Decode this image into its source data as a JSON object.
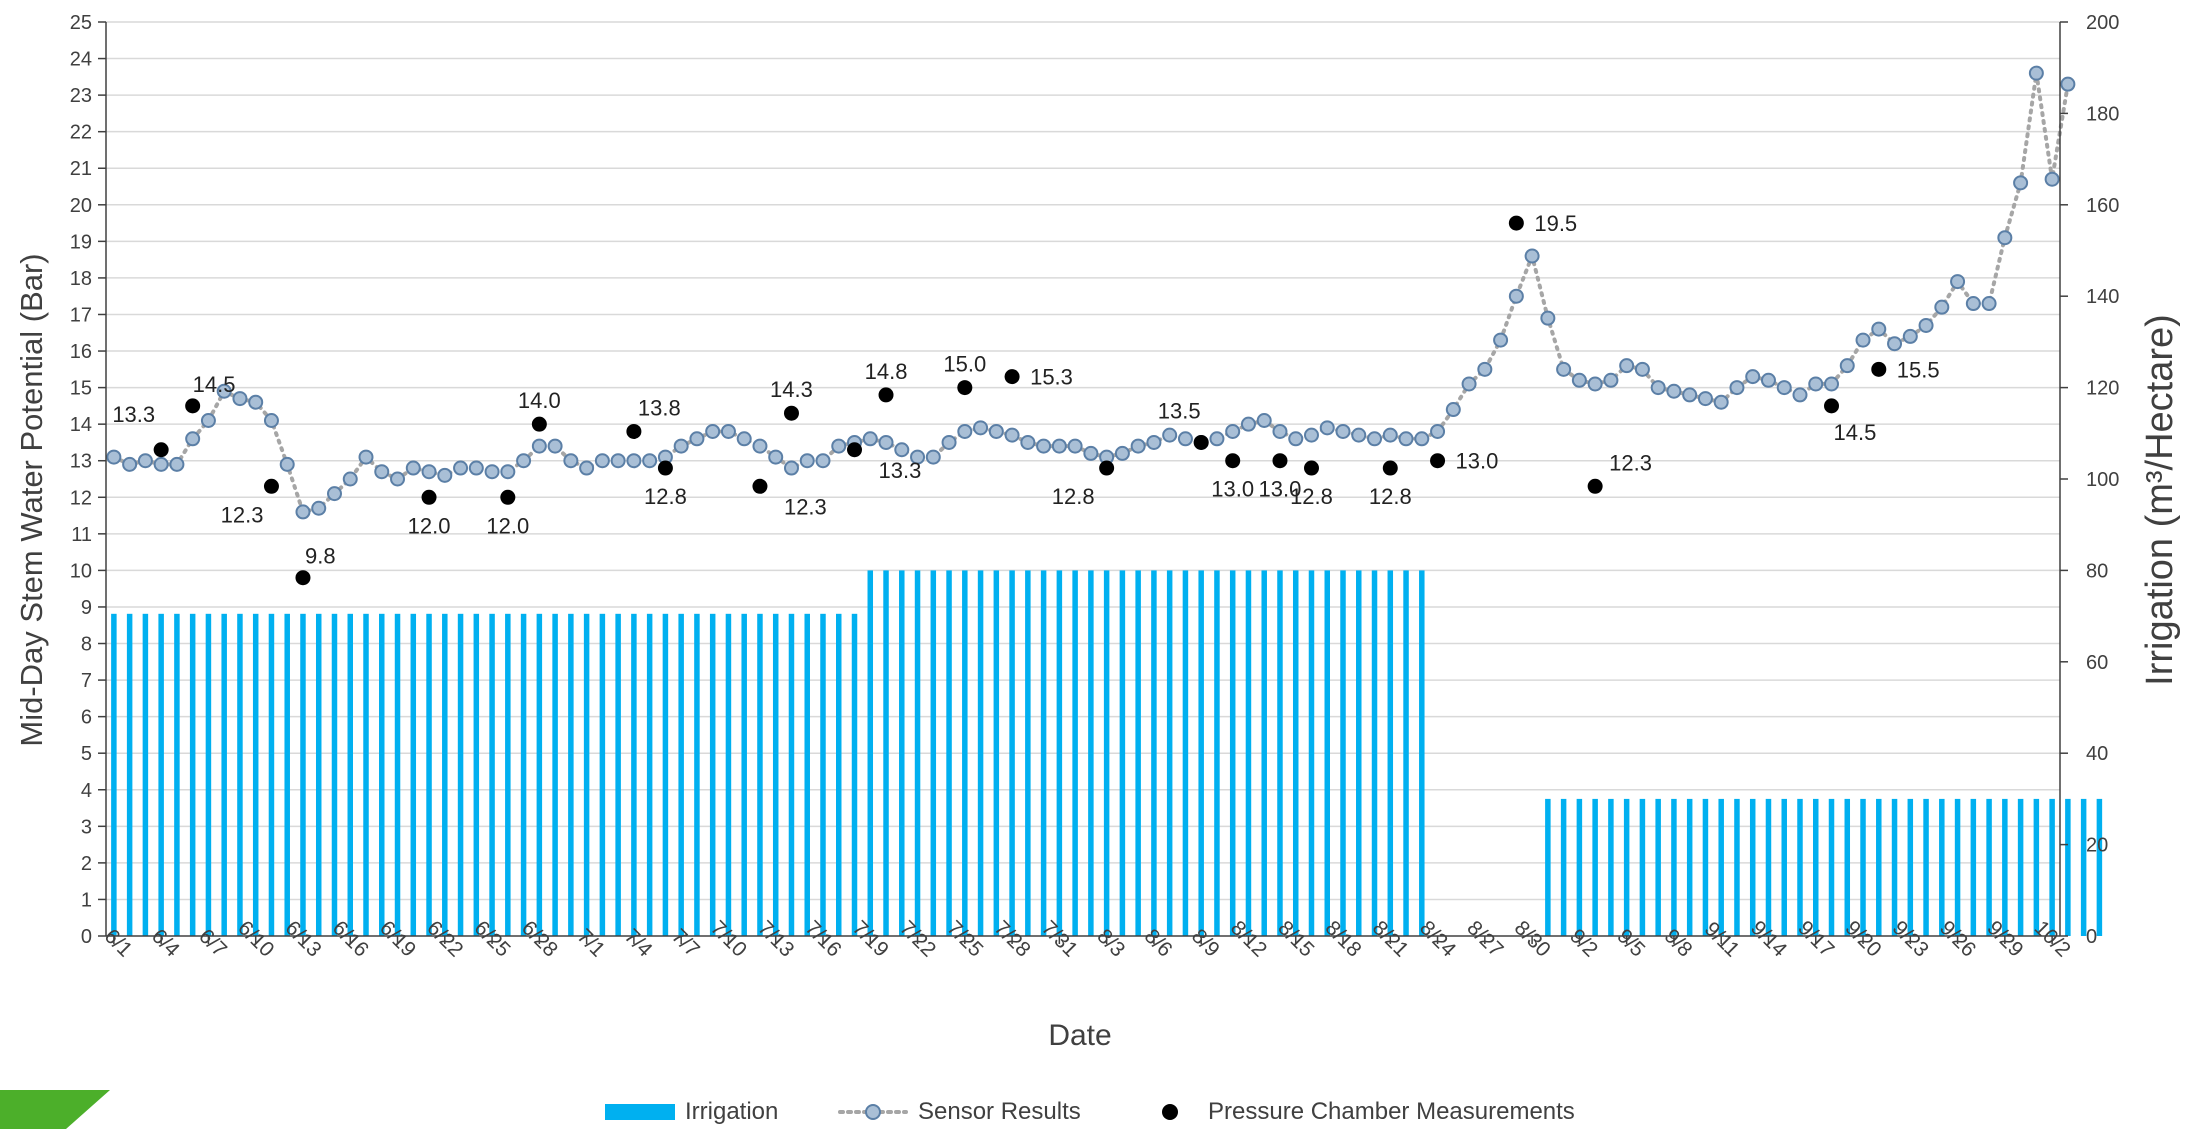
{
  "colors": {
    "irrigation": "#00B0F0",
    "sensor_fill": "#A9BFD6",
    "sensor_stroke": "#5B7FA6",
    "sensor_line": "#A6A6A6",
    "pressure": "#000000",
    "grid": "#D9D9D9",
    "axis_text": "#404040",
    "corner_accent": "#4CAF2A"
  },
  "legend": {
    "irrigation": "Irrigation",
    "sensor": "Sensor Results",
    "pressure": "Pressure Chamber Measurements"
  },
  "chart_data": {
    "type": "bar+line+scatter",
    "xlabel": "Date",
    "ylabel_left": "Mid-Day Stem Water Potential (Bar)",
    "ylabel_right": "Irrigation (m³/Hectare)",
    "ylim_left": [
      0,
      25
    ],
    "ylim_right": [
      0,
      200
    ],
    "left_ticks": [
      0,
      1,
      2,
      3,
      4,
      5,
      6,
      7,
      8,
      9,
      10,
      11,
      12,
      13,
      14,
      15,
      16,
      17,
      18,
      19,
      20,
      21,
      22,
      23,
      24,
      25
    ],
    "right_ticks": [
      0,
      20,
      40,
      60,
      80,
      100,
      120,
      140,
      160,
      180,
      200
    ],
    "grid": true,
    "legend_position": "bottom",
    "x_ticks": [
      "6/1",
      "6/4",
      "6/7",
      "6/10",
      "6/13",
      "6/16",
      "6/19",
      "6/22",
      "6/25",
      "6/28",
      "7/1",
      "7/4",
      "7/7",
      "7/10",
      "7/13",
      "7/16",
      "7/19",
      "7/22",
      "7/25",
      "7/28",
      "7/31",
      "8/3",
      "8/6",
      "8/9",
      "8/12",
      "8/15",
      "8/18",
      "8/21",
      "8/24",
      "8/27",
      "8/30",
      "9/2",
      "9/5",
      "9/8",
      "9/11",
      "9/14",
      "9/17",
      "9/20",
      "9/23",
      "9/26",
      "9/29",
      "10/2"
    ],
    "irrigation": {
      "name": "Irrigation",
      "segments": [
        {
          "start_day": 0,
          "end_day": 47,
          "value": 70.5
        },
        {
          "start_day": 48,
          "end_day": 83,
          "value": 80
        },
        {
          "start_day": 91,
          "end_day": 126,
          "value": 30
        }
      ]
    },
    "sensor": {
      "name": "Sensor Results",
      "values": [
        13.1,
        12.9,
        13.0,
        12.9,
        12.9,
        13.6,
        14.1,
        14.9,
        14.7,
        14.6,
        14.1,
        12.9,
        11.6,
        11.7,
        12.1,
        12.5,
        13.1,
        12.7,
        12.5,
        12.8,
        12.7,
        12.6,
        12.8,
        12.8,
        12.7,
        12.7,
        13.0,
        13.4,
        13.4,
        13.0,
        12.8,
        13.0,
        13.0,
        13.0,
        13.0,
        13.1,
        13.4,
        13.6,
        13.8,
        13.8,
        13.6,
        13.4,
        13.1,
        12.8,
        13.0,
        13.0,
        13.4,
        13.5,
        13.6,
        13.5,
        13.3,
        13.1,
        13.1,
        13.5,
        13.8,
        13.9,
        13.8,
        13.7,
        13.5,
        13.4,
        13.4,
        13.4,
        13.2,
        13.1,
        13.2,
        13.4,
        13.5,
        13.7,
        13.6,
        13.5,
        13.6,
        13.8,
        14.0,
        14.1,
        13.8,
        13.6,
        13.7,
        13.9,
        13.8,
        13.7,
        13.6,
        13.7,
        13.6,
        13.6,
        13.8,
        14.4,
        15.1,
        15.5,
        16.3,
        17.5,
        18.6,
        16.9,
        15.5,
        15.2,
        15.1,
        15.2,
        15.6,
        15.5,
        15.0,
        14.9,
        14.8,
        14.7,
        14.6,
        15.0,
        15.3,
        15.2,
        15.0,
        14.8,
        15.1,
        15.1,
        15.6,
        16.3,
        16.6,
        16.2,
        16.4,
        16.7,
        17.2,
        17.9,
        17.3,
        17.3,
        19.1,
        20.6,
        23.6,
        20.7,
        23.3
      ]
    },
    "pressure": {
      "name": "Pressure Chamber Measurements",
      "points": [
        {
          "day": 3,
          "value": 13.3,
          "label": "13.3"
        },
        {
          "day": 5,
          "value": 14.5,
          "label": "14.5"
        },
        {
          "day": 10,
          "value": 12.3,
          "label": "12.3"
        },
        {
          "day": 12,
          "value": 9.8,
          "label": "9.8"
        },
        {
          "day": 20,
          "value": 12.0,
          "label": "12.0"
        },
        {
          "day": 25,
          "value": 12.0,
          "label": "12.0"
        },
        {
          "day": 27,
          "value": 14.0,
          "label": "14.0"
        },
        {
          "day": 33,
          "value": 13.8,
          "label": "13.8"
        },
        {
          "day": 35,
          "value": 12.8,
          "label": "12.8"
        },
        {
          "day": 41,
          "value": 12.3,
          "label": "12.3"
        },
        {
          "day": 43,
          "value": 14.3,
          "label": "14.3"
        },
        {
          "day": 47,
          "value": 13.3,
          "label": "13.3"
        },
        {
          "day": 49,
          "value": 14.8,
          "label": "14.8"
        },
        {
          "day": 54,
          "value": 15.0,
          "label": "15.0"
        },
        {
          "day": 57,
          "value": 15.3,
          "label": "15.3"
        },
        {
          "day": 63,
          "value": 12.8,
          "label": "12.8"
        },
        {
          "day": 69,
          "value": 13.5,
          "label": "13.5"
        },
        {
          "day": 71,
          "value": 13.0,
          "label": "13.0"
        },
        {
          "day": 74,
          "value": 13.0,
          "label": "13.0"
        },
        {
          "day": 76,
          "value": 12.8,
          "label": "12.8"
        },
        {
          "day": 81,
          "value": 12.8,
          "label": "12.8"
        },
        {
          "day": 84,
          "value": 13.0,
          "label": "13.0"
        },
        {
          "day": 89,
          "value": 19.5,
          "label": "19.5"
        },
        {
          "day": 94,
          "value": 12.3,
          "label": "12.3"
        },
        {
          "day": 109,
          "value": 14.5,
          "label": "14.5"
        },
        {
          "day": 112,
          "value": 15.5,
          "label": "15.5"
        }
      ]
    }
  }
}
